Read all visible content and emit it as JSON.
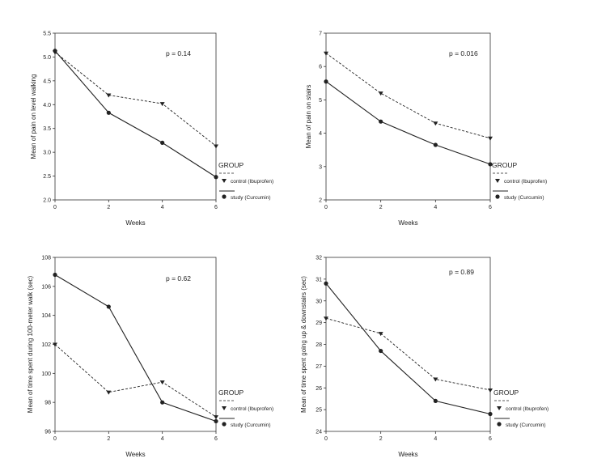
{
  "chart_data": [
    {
      "type": "line",
      "xlabel": "Weeks",
      "ylabel": "Mean of pain on level walking",
      "x": [
        0,
        2,
        4,
        6
      ],
      "xticks": [
        "0",
        "2",
        "4",
        "6"
      ],
      "ylim": [
        2.0,
        5.5
      ],
      "yticks": [
        "2.0",
        "2.5",
        "3.0",
        "3.5",
        "4.0",
        "4.5",
        "5.0",
        "5.5"
      ],
      "annotation": "p = 0.14",
      "legend_title": "GROUP",
      "series": [
        {
          "name": "control (Ibuprofen)",
          "values": [
            5.1,
            4.2,
            4.02,
            3.13
          ]
        },
        {
          "name": "study (Curcumin)",
          "values": [
            5.13,
            3.83,
            3.2,
            2.48
          ]
        }
      ]
    },
    {
      "type": "line",
      "xlabel": "Weeks",
      "ylabel": "Mean of pain on stairs",
      "x": [
        0,
        2,
        4,
        6
      ],
      "xticks": [
        "0",
        "2",
        "4",
        "6"
      ],
      "ylim": [
        2,
        7
      ],
      "yticks": [
        "2",
        "3",
        "4",
        "5",
        "6",
        "7"
      ],
      "annotation": "p = 0.016",
      "legend_title": "GROUP",
      "series": [
        {
          "name": "control (Ibuprofen)",
          "values": [
            6.4,
            5.2,
            4.3,
            3.85
          ]
        },
        {
          "name": "study (Curcumin)",
          "values": [
            5.55,
            4.35,
            3.65,
            3.07
          ]
        }
      ]
    },
    {
      "type": "line",
      "xlabel": "Weeks",
      "ylabel": "Mean of time spent during 100-meter walk (sec)",
      "x": [
        0,
        2,
        4,
        6
      ],
      "xticks": [
        "0",
        "2",
        "4",
        "6"
      ],
      "ylim": [
        96,
        108
      ],
      "yticks": [
        "96",
        "98",
        "100",
        "102",
        "104",
        "106",
        "108"
      ],
      "annotation": "p = 0.62",
      "legend_title": "GROUP",
      "series": [
        {
          "name": "control (Ibuprofen)",
          "values": [
            102.0,
            98.7,
            99.4,
            97.0
          ]
        },
        {
          "name": "study (Curcumin)",
          "values": [
            106.8,
            104.6,
            98.0,
            96.7
          ]
        }
      ]
    },
    {
      "type": "line",
      "xlabel": "Weeks",
      "ylabel": "Mean of time spent going up & downstairs (sec)",
      "x": [
        0,
        2,
        4,
        6
      ],
      "xticks": [
        "0",
        "2",
        "4",
        "6"
      ],
      "ylim": [
        24,
        32
      ],
      "yticks": [
        "24",
        "25",
        "26",
        "27",
        "28",
        "29",
        "30",
        "31",
        "32"
      ],
      "annotation": "p = 0.89",
      "legend_title": "GROUP",
      "series": [
        {
          "name": "control (Ibuprofen)",
          "values": [
            29.2,
            28.5,
            26.4,
            25.9
          ]
        },
        {
          "name": "study (Curcumin)",
          "values": [
            30.8,
            27.7,
            25.4,
            24.8
          ]
        }
      ]
    }
  ]
}
